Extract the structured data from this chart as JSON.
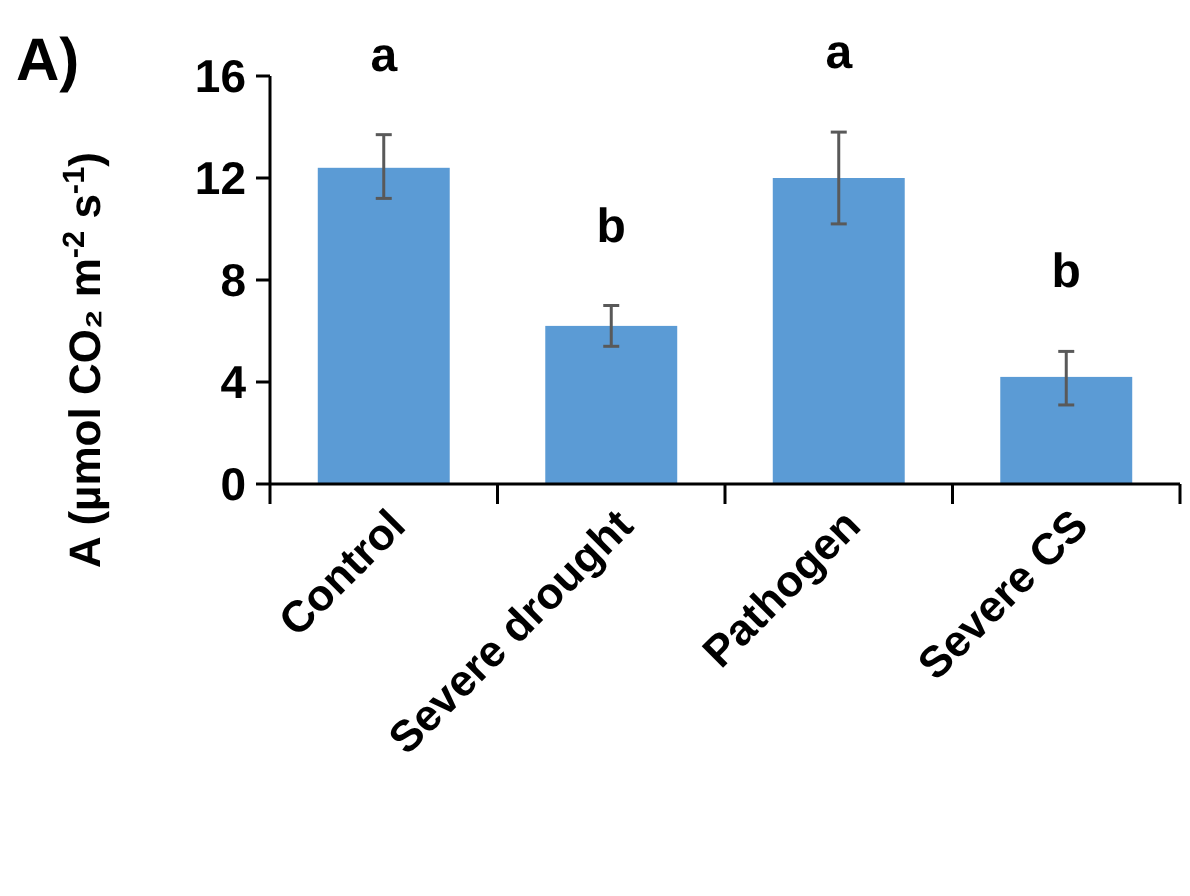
{
  "chart_data": {
    "type": "bar",
    "title": "A)",
    "ylabel": "A (µmol CO₂ m$^{-2}$ s$^{-1}$)",
    "categories": [
      "Control",
      "Severe drought",
      "Pathogen",
      "Severe CS"
    ],
    "series": [
      {
        "color": "#5b9bd5",
        "values": [
          12.4,
          6.2,
          12.0,
          4.2
        ],
        "errors": [
          [
            11.2,
            13.7
          ],
          [
            5.4,
            7.0
          ],
          [
            10.2,
            13.8
          ],
          [
            3.1,
            5.2
          ]
        ]
      }
    ],
    "ylim": [
      0,
      16
    ],
    "yticks": [
      0,
      4,
      8,
      12,
      16
    ],
    "grid": false,
    "annotations": [
      "a",
      "b",
      "a",
      "b"
    ]
  }
}
